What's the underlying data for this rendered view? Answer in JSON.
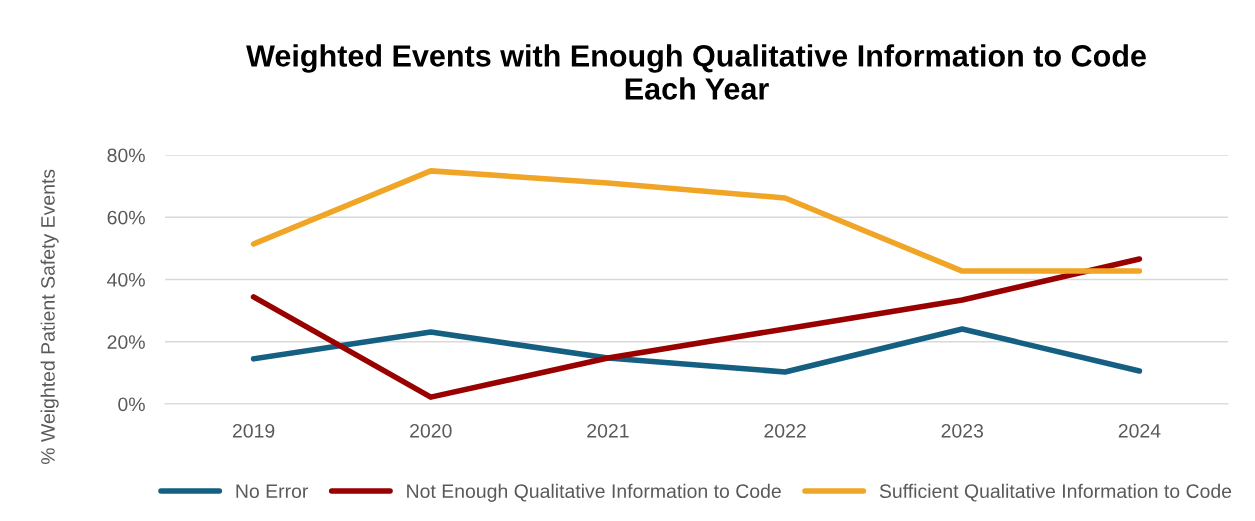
{
  "chart_data": {
    "type": "line",
    "title": "Weighted Events with Enough Qualitative Information to Code\nEach Year",
    "ylabel": "% Weighted Patient Safety Events",
    "categories": [
      "2019",
      "2020",
      "2021",
      "2022",
      "2023",
      "2024"
    ],
    "series": [
      {
        "name": "No Error",
        "color": "#156082",
        "values": [
          14.5,
          23.1,
          14.8,
          10.3,
          24.1,
          10.6
        ]
      },
      {
        "name": "Not Enough Qualitative Information to Code",
        "color": "#990000",
        "values": [
          34.4,
          2.2,
          14.8,
          24.1,
          33.4,
          46.6
        ]
      },
      {
        "name": "Sufficient Qualitative Information to Code",
        "color": "#f0a526",
        "values": [
          51.4,
          74.9,
          71.0,
          66.2,
          42.7,
          42.7
        ]
      }
    ],
    "ylim": [
      0,
      80
    ],
    "yticks": [
      {
        "value": 0,
        "label": "0%"
      },
      {
        "value": 20,
        "label": "20%"
      },
      {
        "value": 40,
        "label": "40%"
      },
      {
        "value": 60,
        "label": "60%"
      },
      {
        "value": 80,
        "label": "80%"
      }
    ],
    "grid": "y",
    "legend": "bottom",
    "marker": "none",
    "line_style": "solid"
  }
}
